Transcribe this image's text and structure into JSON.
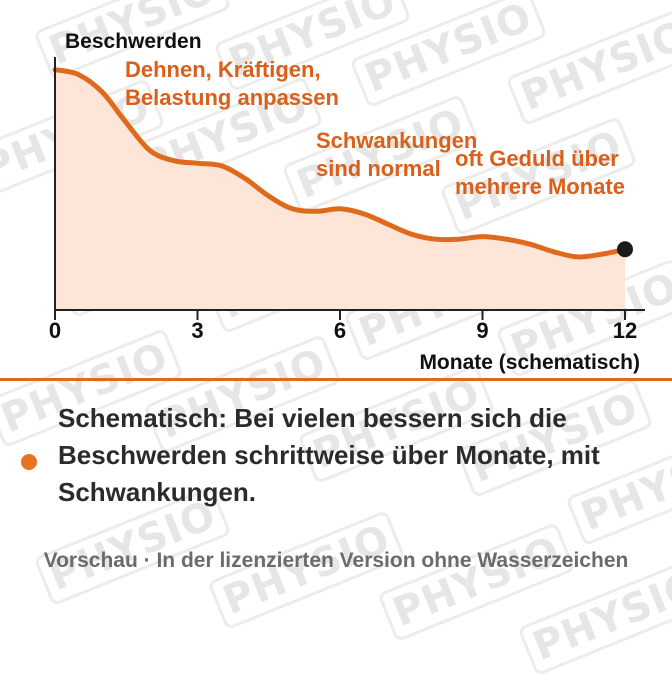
{
  "watermark": {
    "text": "PHYSIO"
  },
  "chart_data": {
    "type": "area",
    "ylabel": "Beschwerden",
    "xlabel": "Monate (schematisch)",
    "x_ticks": [
      0,
      3,
      6,
      9,
      12
    ],
    "xlim": [
      0,
      12
    ],
    "ylim": [
      0,
      100
    ],
    "grid": false,
    "x": [
      0,
      0.5,
      1,
      1.5,
      2,
      2.5,
      3,
      3.5,
      4,
      4.5,
      5,
      5.5,
      6,
      6.5,
      7,
      7.5,
      8,
      8.5,
      9,
      9.5,
      10,
      10.5,
      11,
      11.5,
      12
    ],
    "y": [
      95,
      93,
      86,
      74,
      63,
      59,
      58,
      57,
      52,
      45,
      40,
      39,
      40,
      38,
      34,
      30,
      28,
      28,
      29,
      28,
      26,
      23,
      21,
      22,
      24
    ],
    "end_marker": {
      "x": 12,
      "y": 24
    },
    "annotations": [
      {
        "lines": [
          "Dehnen, Kräftigen,",
          "Belastung anpassen"
        ]
      },
      {
        "lines": [
          "Schwankungen",
          "sind normal"
        ]
      },
      {
        "lines": [
          "oft Geduld über",
          "mehrere Monate"
        ]
      }
    ],
    "colors": {
      "line": "#e06a1b",
      "fill": "#fde5d8",
      "text_accent": "#d9601a",
      "axis": "#222222",
      "marker": "#1a1a1a"
    }
  },
  "caption": "Schematisch: Bei vielen bessern sich die Beschwerden schrittweise über Monate, mit Schwankungen.",
  "footer": "Vorschau · In der lizenzierten Version ohne Wasserzeichen"
}
